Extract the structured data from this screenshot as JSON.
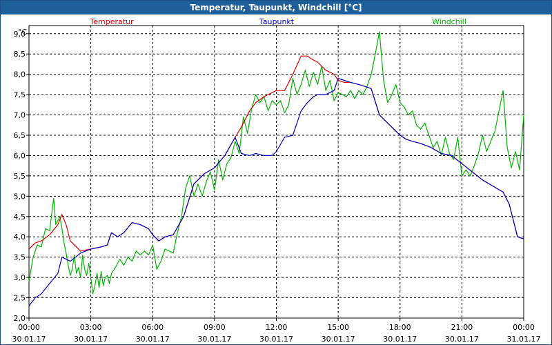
{
  "window": {
    "title": "Temperatur, Taupunkt, Windchill [°C]"
  },
  "colors": {
    "temperatur": "#e00000",
    "taupunkt": "#0000c8",
    "windchill": "#00b400",
    "title_bar": "#1e5f99"
  },
  "chart_data": {
    "type": "line",
    "title": "Temperatur, Taupunkt, Windchill [°C]",
    "unit_label": "°C",
    "ylim": [
      2.0,
      9.2
    ],
    "xlim_hours": [
      0,
      24
    ],
    "grid": true,
    "legend_placement": "top",
    "y_ticks": [
      "2,0",
      "2,5",
      "3,0",
      "3,5",
      "4,0",
      "4,5",
      "5,0",
      "5,5",
      "6,0",
      "6,5",
      "7,0",
      "7,5",
      "8,0",
      "8,5",
      "9,0"
    ],
    "x_ticks": [
      {
        "time": "00:00",
        "date": "30.01.17"
      },
      {
        "time": "03:00",
        "date": "30.01.17"
      },
      {
        "time": "06:00",
        "date": "30.01.17"
      },
      {
        "time": "09:00",
        "date": "30.01.17"
      },
      {
        "time": "12:00",
        "date": "30.01.17"
      },
      {
        "time": "15:00",
        "date": "30.01.17"
      },
      {
        "time": "18:00",
        "date": "30.01.17"
      },
      {
        "time": "21:00",
        "date": "30.01.17"
      },
      {
        "time": "00:00",
        "date": "31.01.17"
      }
    ],
    "series": [
      {
        "name": "Temperatur",
        "color": "#e00000",
        "x": [
          0,
          0.3,
          0.6,
          1,
          1.4,
          1.6,
          1.8,
          2,
          2.5,
          3,
          3.5,
          3.8,
          4,
          4.3,
          4.6,
          5,
          5.4,
          5.8,
          6,
          6.3,
          6.6,
          7,
          7.5,
          8,
          8.5,
          9,
          9.5,
          10,
          10.3,
          10.7,
          11,
          11.4,
          11.8,
          12,
          12.4,
          12.8,
          13.2,
          13.5,
          13.8,
          14,
          14.4,
          14.8,
          15,
          15.3,
          15.6,
          16,
          16.3,
          16.6,
          17,
          17.4,
          17.8,
          18,
          18.3,
          18.6,
          19,
          19.5,
          20,
          20.5,
          21,
          21.5,
          22,
          22.5,
          23,
          23.3,
          23.7,
          24
        ],
        "values": [
          3.7,
          3.85,
          3.9,
          4.05,
          4.3,
          4.55,
          4.3,
          3.9,
          3.65,
          3.7,
          3.75,
          3.8,
          4.1,
          4.0,
          4.1,
          4.35,
          4.3,
          4.2,
          4.05,
          3.9,
          4.0,
          4.05,
          4.5,
          5.3,
          5.55,
          5.7,
          6.0,
          6.45,
          6.7,
          7.1,
          7.3,
          7.45,
          7.55,
          7.6,
          7.6,
          8.0,
          8.45,
          8.45,
          8.35,
          8.3,
          8.1,
          8.0,
          7.85,
          7.8,
          7.8,
          7.75,
          7.7,
          7.65,
          7.0,
          6.8,
          6.6,
          6.5,
          6.4,
          6.35,
          6.3,
          6.2,
          6.05,
          6.0,
          5.8,
          5.6,
          5.4,
          5.25,
          5.1,
          4.8,
          4.0,
          3.95
        ]
      },
      {
        "name": "Taupunkt",
        "color": "#0000c8",
        "x": [
          0,
          0.3,
          0.6,
          1,
          1.4,
          1.6,
          1.8,
          2,
          2.5,
          3,
          3.5,
          3.8,
          4,
          4.3,
          4.6,
          5,
          5.4,
          5.8,
          6,
          6.3,
          6.6,
          7,
          7.5,
          8,
          8.5,
          9,
          9.5,
          10,
          10.3,
          10.7,
          11,
          11.4,
          11.8,
          12,
          12.4,
          12.8,
          13.2,
          13.5,
          13.8,
          14,
          14.4,
          14.8,
          15,
          15.3,
          15.6,
          16,
          16.3,
          16.6,
          17,
          17.4,
          17.8,
          18,
          18.3,
          18.6,
          19,
          19.5,
          20,
          20.5,
          21,
          21.5,
          22,
          22.5,
          23,
          23.3,
          23.7,
          24
        ],
        "values": [
          2.3,
          2.5,
          2.6,
          2.85,
          3.1,
          3.5,
          3.45,
          3.4,
          3.6,
          3.7,
          3.75,
          3.8,
          4.1,
          4.0,
          4.1,
          4.35,
          4.3,
          4.2,
          4.05,
          3.9,
          4.0,
          4.05,
          4.5,
          5.3,
          5.55,
          5.7,
          6.0,
          6.45,
          6.05,
          6.0,
          6.05,
          6.0,
          6.0,
          6.1,
          6.45,
          6.5,
          7.1,
          7.3,
          7.45,
          7.5,
          7.5,
          7.6,
          7.9,
          7.85,
          7.8,
          7.75,
          7.7,
          7.65,
          7.0,
          6.8,
          6.6,
          6.5,
          6.4,
          6.35,
          6.3,
          6.2,
          6.05,
          6.0,
          5.8,
          5.6,
          5.4,
          5.25,
          5.1,
          4.8,
          4.0,
          3.95
        ]
      },
      {
        "name": "Windchill",
        "color": "#00b400",
        "x": [
          0,
          0.2,
          0.4,
          0.6,
          0.8,
          1.0,
          1.2,
          1.3,
          1.4,
          1.5,
          1.6,
          1.7,
          1.8,
          1.9,
          2.0,
          2.1,
          2.2,
          2.3,
          2.4,
          2.5,
          2.6,
          2.7,
          2.8,
          2.9,
          3.0,
          3.1,
          3.2,
          3.3,
          3.4,
          3.5,
          3.6,
          3.7,
          3.8,
          3.9,
          4.0,
          4.2,
          4.4,
          4.6,
          4.8,
          5.0,
          5.2,
          5.4,
          5.6,
          5.8,
          6.0,
          6.2,
          6.4,
          6.6,
          6.8,
          7.0,
          7.2,
          7.4,
          7.6,
          7.8,
          8.0,
          8.2,
          8.4,
          8.6,
          8.8,
          9.0,
          9.2,
          9.4,
          9.6,
          9.8,
          10.0,
          10.2,
          10.4,
          10.6,
          10.8,
          11.0,
          11.2,
          11.4,
          11.6,
          11.8,
          12.0,
          12.2,
          12.4,
          12.6,
          12.8,
          13.0,
          13.2,
          13.4,
          13.6,
          13.8,
          14.0,
          14.2,
          14.4,
          14.6,
          14.8,
          15.0,
          15.2,
          15.4,
          15.6,
          15.8,
          16.0,
          16.2,
          16.4,
          16.6,
          16.8,
          17.0,
          17.2,
          17.4,
          17.6,
          17.8,
          18.0,
          18.2,
          18.4,
          18.6,
          18.8,
          19.0,
          19.2,
          19.4,
          19.6,
          19.8,
          20.0,
          20.2,
          20.4,
          20.6,
          20.8,
          21.0,
          21.2,
          21.4,
          21.6,
          21.8,
          22.0,
          22.2,
          22.4,
          22.6,
          22.8,
          23.0,
          23.2,
          23.4,
          23.6,
          23.8,
          24.0
        ],
        "values": [
          2.9,
          3.5,
          3.8,
          3.75,
          4.2,
          4.15,
          4.95,
          4.3,
          4.4,
          4.5,
          4.2,
          3.85,
          3.6,
          3.3,
          3.05,
          3.2,
          3.55,
          3.1,
          3.25,
          3.0,
          3.55,
          3.2,
          3.05,
          3.35,
          3.0,
          2.6,
          2.8,
          3.1,
          2.75,
          3.15,
          2.8,
          3.0,
          3.05,
          2.85,
          3.1,
          3.25,
          3.45,
          3.3,
          3.5,
          3.4,
          3.65,
          3.55,
          3.65,
          3.55,
          3.8,
          3.2,
          3.4,
          3.7,
          3.65,
          3.6,
          4.1,
          4.5,
          5.2,
          5.5,
          5.0,
          5.3,
          5.0,
          5.35,
          5.6,
          5.15,
          5.9,
          5.4,
          5.8,
          5.95,
          6.35,
          6.05,
          6.95,
          6.55,
          7.15,
          7.5,
          7.3,
          7.45,
          7.1,
          7.35,
          7.25,
          7.35,
          7.05,
          7.25,
          7.9,
          7.5,
          7.75,
          8.1,
          7.7,
          8.05,
          7.75,
          8.2,
          7.6,
          7.85,
          7.35,
          7.55,
          7.5,
          7.45,
          7.6,
          7.4,
          7.6,
          7.5,
          7.7,
          8.0,
          8.5,
          9.05,
          7.85,
          7.3,
          7.5,
          7.75,
          7.3,
          7.2,
          7.0,
          7.1,
          6.75,
          6.65,
          6.8,
          6.5,
          6.2,
          6.35,
          6.0,
          6.45,
          6.05,
          5.9,
          6.45,
          5.5,
          5.65,
          5.5,
          5.75,
          6.05,
          6.5,
          6.1,
          6.35,
          6.6,
          7.1,
          7.6,
          6.2,
          5.7,
          6.1,
          5.65,
          7.0
        ]
      }
    ]
  }
}
